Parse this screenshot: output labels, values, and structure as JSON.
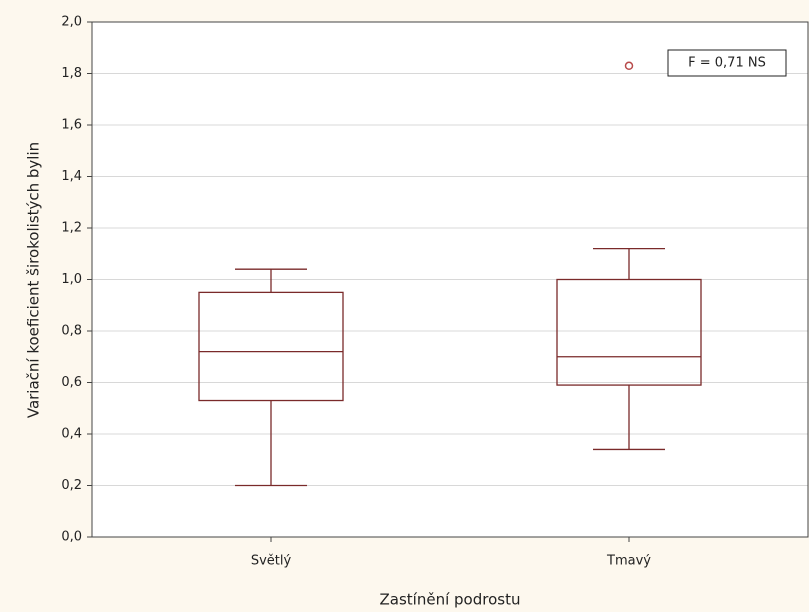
{
  "chart_data": {
    "type": "box",
    "x_label": "Zastínění podrostu",
    "y_label": "Variační koeficient širokolistých bylin",
    "annotation": "F = 0,71 NS",
    "categories": [
      "Světlý",
      "Tmavý"
    ],
    "color": "#7a2a2a",
    "outlier_color": "#b84a4a",
    "grid": true,
    "boxes": [
      {
        "whisker_low": 0.2,
        "q1": 0.53,
        "median": 0.72,
        "q3": 0.95,
        "whisker_high": 1.04,
        "outliers": []
      },
      {
        "whisker_low": 0.34,
        "q1": 0.59,
        "median": 0.7,
        "q3": 1.0,
        "whisker_high": 1.12,
        "outliers": [
          1.83
        ]
      }
    ],
    "ylim": [
      0,
      2
    ],
    "yticks": [
      {
        "value": 0,
        "label": "0,0"
      },
      {
        "value": 0.2,
        "label": "0,2"
      },
      {
        "value": 0.4,
        "label": "0,4"
      },
      {
        "value": 0.6,
        "label": "0,6"
      },
      {
        "value": 0.8,
        "label": "0,8"
      },
      {
        "value": 1.0,
        "label": "1,0"
      },
      {
        "value": 1.2,
        "label": "1,2"
      },
      {
        "value": 1.4,
        "label": "1,4"
      },
      {
        "value": 1.6,
        "label": "1,6"
      },
      {
        "value": 1.8,
        "label": "1,8"
      },
      {
        "value": 2.0,
        "label": "2,0"
      }
    ]
  }
}
